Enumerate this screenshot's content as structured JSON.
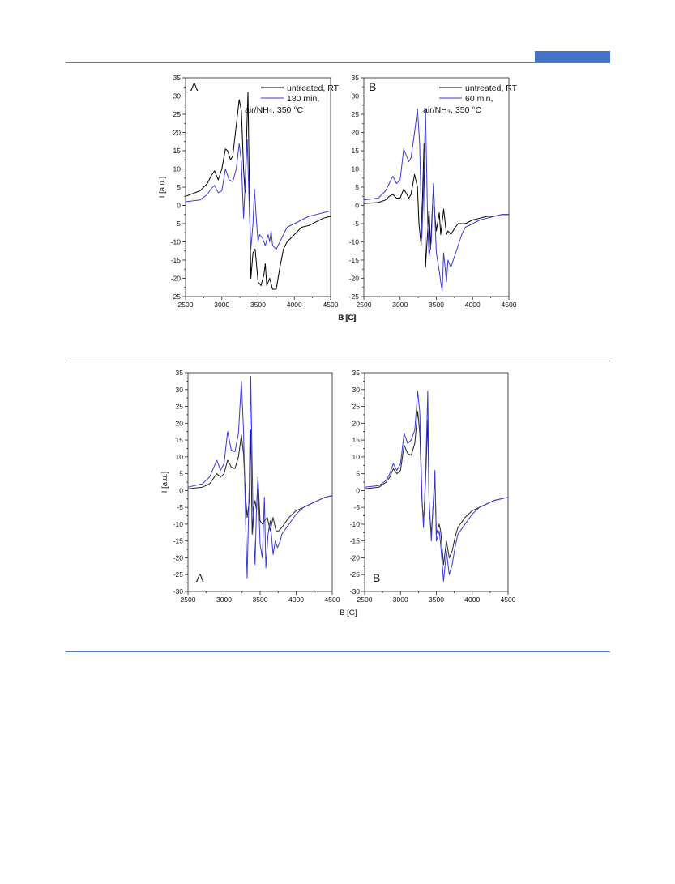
{
  "page": {
    "accent_color": "#4f81bd",
    "tab_color": "#4472c4"
  },
  "chart_data": [
    {
      "type": "line",
      "panel_label": "A",
      "xlabel": "B [G]",
      "ylabel": "I [a.u.]",
      "xlim": [
        2500,
        4500
      ],
      "ylim": [
        -25,
        35
      ],
      "xticks": [
        2500,
        3000,
        3500,
        4000,
        4500
      ],
      "yticks": [
        -25,
        -20,
        -15,
        -10,
        -5,
        0,
        5,
        10,
        15,
        20,
        25,
        30,
        35
      ],
      "legend_position": "top-right",
      "series": [
        {
          "name": "untreated, RT",
          "color": "#000000",
          "x": [
            2500,
            2700,
            2800,
            2850,
            2900,
            2950,
            3000,
            3050,
            3080,
            3120,
            3150,
            3200,
            3240,
            3270,
            3300,
            3320,
            3340,
            3360,
            3380,
            3400,
            3430,
            3460,
            3500,
            3540,
            3580,
            3600,
            3620,
            3660,
            3700,
            3750,
            3800,
            3850,
            3900,
            4000,
            4100,
            4200,
            4300,
            4400,
            4500
          ],
          "y": [
            2.5,
            4,
            6,
            8,
            9.5,
            7,
            10,
            15.5,
            15,
            12.5,
            13.5,
            22,
            29,
            26,
            10,
            3.5,
            18,
            31,
            5,
            -20,
            -13,
            -12,
            -21,
            -22,
            -19,
            -16,
            -22,
            -20,
            -23,
            -23,
            -17,
            -12,
            -10,
            -8,
            -6,
            -5.5,
            -4.5,
            -3.5,
            -3
          ]
        },
        {
          "name": "180 min, air/NH₃, 350 °C",
          "color": "#3a3ad8",
          "x": [
            2500,
            2700,
            2800,
            2850,
            2900,
            2950,
            3000,
            3050,
            3100,
            3150,
            3200,
            3240,
            3270,
            3300,
            3320,
            3350,
            3380,
            3400,
            3430,
            3450,
            3480,
            3500,
            3520,
            3560,
            3580,
            3600,
            3640,
            3660,
            3680,
            3700,
            3750,
            3800,
            3850,
            3900,
            4000,
            4100,
            4200,
            4300,
            4400,
            4500
          ],
          "y": [
            1,
            1.5,
            3,
            4.5,
            5.5,
            3.5,
            4,
            10,
            7,
            6.5,
            10,
            17,
            12,
            -3.5,
            5,
            18,
            -2,
            -12,
            -5,
            4.5,
            -5,
            -10,
            -8,
            -9,
            -10,
            -11,
            -8,
            -10,
            -7,
            -11,
            -12,
            -10,
            -8,
            -6,
            -5,
            -4,
            -3,
            -2.5,
            -2,
            -1.5
          ]
        }
      ]
    },
    {
      "type": "line",
      "panel_label": "B",
      "xlabel": "B [G]",
      "ylabel": "",
      "xlim": [
        2500,
        4500
      ],
      "ylim": [
        -25,
        35
      ],
      "xticks": [
        2500,
        3000,
        3500,
        4000,
        4500
      ],
      "yticks": [
        -25,
        -20,
        -15,
        -10,
        -5,
        0,
        5,
        10,
        15,
        20,
        25,
        30,
        35
      ],
      "legend_position": "top-right",
      "series": [
        {
          "name": "untreated, RT",
          "color": "#000000",
          "x": [
            2500,
            2700,
            2800,
            2850,
            2900,
            2950,
            3000,
            3050,
            3080,
            3120,
            3150,
            3200,
            3240,
            3260,
            3290,
            3310,
            3330,
            3350,
            3380,
            3400,
            3420,
            3440,
            3460,
            3480,
            3500,
            3540,
            3560,
            3600,
            3640,
            3660,
            3700,
            3760,
            3800,
            3900,
            4000,
            4100,
            4200,
            4300,
            4400,
            4500
          ],
          "y": [
            0.5,
            0.8,
            1.5,
            2.5,
            3,
            2,
            2,
            4.5,
            3.5,
            2,
            3,
            8.5,
            5,
            -5,
            -11,
            3,
            17,
            -17,
            -7,
            -1,
            -12,
            -3,
            5,
            -3,
            -7,
            -2,
            -8,
            -1,
            -8,
            -7,
            -8,
            -6,
            -5,
            -5,
            -4,
            -3.5,
            -3,
            -3,
            -2.5,
            -2.5
          ]
        },
        {
          "name": "60 min, air/NH₃, 350 °C",
          "color": "#3a3ad8",
          "x": [
            2500,
            2700,
            2800,
            2850,
            2900,
            2950,
            3000,
            3050,
            3080,
            3120,
            3150,
            3200,
            3240,
            3270,
            3300,
            3320,
            3350,
            3380,
            3400,
            3430,
            3460,
            3500,
            3540,
            3560,
            3580,
            3600,
            3640,
            3660,
            3700,
            3750,
            3800,
            3850,
            3900,
            4000,
            4100,
            4200,
            4300,
            4400,
            4500
          ],
          "y": [
            1.5,
            2,
            4,
            6,
            8,
            6,
            7,
            15.5,
            14,
            12,
            13,
            20,
            26.5,
            17,
            -9,
            2,
            26.5,
            -5,
            -14,
            -10,
            6,
            -13,
            -18,
            -21,
            -23.5,
            -13,
            -21,
            -15,
            -17,
            -14,
            -11,
            -8,
            -6,
            -5,
            -4,
            -3.5,
            -3,
            -2.5,
            -2.5
          ]
        }
      ]
    },
    {
      "type": "line",
      "panel_label": "A",
      "xlabel": "B [G]",
      "ylabel": "I [a.u.]",
      "xlim": [
        2500,
        4500
      ],
      "ylim": [
        -30,
        35
      ],
      "xticks": [
        2500,
        3000,
        3500,
        4000,
        4500
      ],
      "yticks": [
        -30,
        -25,
        -20,
        -15,
        -10,
        -5,
        0,
        5,
        10,
        15,
        20,
        25,
        30,
        35
      ],
      "series": [
        {
          "name": "",
          "color": "#222222",
          "x": [
            2500,
            2700,
            2800,
            2850,
            2900,
            2950,
            3000,
            3050,
            3100,
            3150,
            3200,
            3240,
            3270,
            3300,
            3320,
            3350,
            3370,
            3390,
            3410,
            3430,
            3450,
            3470,
            3500,
            3530,
            3560,
            3600,
            3640,
            3680,
            3720,
            3760,
            3800,
            3900,
            4000,
            4100,
            4200,
            4300,
            4400,
            4500
          ],
          "y": [
            0.5,
            1,
            2,
            3.5,
            5,
            4,
            5,
            9,
            7,
            6.5,
            10,
            16.5,
            11,
            -2,
            -8,
            -3,
            18,
            -13,
            -5,
            -3,
            -6,
            4,
            -9,
            -10,
            -9,
            -8,
            -12,
            -8,
            -12,
            -12,
            -11,
            -8,
            -6,
            -5,
            -4,
            -3,
            -2,
            -1.5
          ]
        },
        {
          "name": "",
          "color": "#3a3ad8",
          "x": [
            2500,
            2700,
            2800,
            2850,
            2900,
            2950,
            3000,
            3050,
            3100,
            3150,
            3200,
            3240,
            3270,
            3300,
            3320,
            3350,
            3370,
            3400,
            3430,
            3450,
            3470,
            3500,
            3530,
            3560,
            3580,
            3610,
            3640,
            3680,
            3710,
            3740,
            3780,
            3800,
            3900,
            4000,
            4100,
            4200,
            4300,
            4400,
            4500
          ],
          "y": [
            1,
            2,
            4,
            6.5,
            9,
            6,
            8,
            17.5,
            12,
            11.5,
            17,
            32.5,
            18,
            -10,
            -26,
            2,
            34,
            -5,
            -22,
            -5,
            3,
            -16,
            -20,
            -2,
            -23,
            -13,
            -9,
            -19,
            -15,
            -17,
            -15,
            -13,
            -10,
            -7,
            -5,
            -4,
            -3,
            -2,
            -1.5
          ]
        }
      ]
    },
    {
      "type": "line",
      "panel_label": "B",
      "xlabel": "",
      "ylabel": "",
      "xlim": [
        2500,
        4500
      ],
      "ylim": [
        -30,
        35
      ],
      "xticks": [
        2500,
        3000,
        3500,
        4000,
        4500
      ],
      "yticks": [
        -30,
        -25,
        -20,
        -15,
        -10,
        -5,
        0,
        5,
        10,
        15,
        20,
        25,
        30,
        35
      ],
      "series": [
        {
          "name": "",
          "color": "#222222",
          "x": [
            2500,
            2700,
            2800,
            2850,
            2900,
            2950,
            3000,
            3050,
            3100,
            3150,
            3200,
            3240,
            3270,
            3300,
            3320,
            3350,
            3380,
            3400,
            3430,
            3450,
            3480,
            3500,
            3540,
            3560,
            3600,
            3640,
            3680,
            3720,
            3760,
            3800,
            3900,
            4000,
            4100,
            4200,
            4300,
            4400,
            4500
          ],
          "y": [
            0.5,
            1,
            2.5,
            4,
            6.5,
            5,
            6,
            13.5,
            11,
            10.5,
            14,
            23.5,
            17,
            -3,
            -10,
            3,
            21,
            -5,
            -13,
            -6,
            4,
            -13,
            -10,
            -12,
            -22,
            -15,
            -20,
            -18,
            -14,
            -11,
            -8,
            -6,
            -5,
            -4,
            -3,
            -2.5,
            -2
          ]
        },
        {
          "name": "",
          "color": "#3a3ad8",
          "x": [
            2500,
            2700,
            2800,
            2850,
            2900,
            2950,
            3000,
            3050,
            3100,
            3150,
            3200,
            3240,
            3270,
            3300,
            3320,
            3350,
            3380,
            3400,
            3430,
            3450,
            3480,
            3500,
            3540,
            3560,
            3600,
            3640,
            3680,
            3720,
            3760,
            3800,
            3900,
            4000,
            4100,
            4200,
            4300,
            4400,
            4500
          ],
          "y": [
            1,
            1.5,
            3,
            5,
            8,
            6,
            8,
            17,
            14,
            15,
            18,
            29.5,
            23,
            -2,
            -11,
            5,
            29.5,
            -3,
            -15,
            -6,
            6,
            -15,
            -12,
            -16,
            -27,
            -18,
            -25,
            -22,
            -17,
            -13,
            -10,
            -7,
            -5,
            -4,
            -3,
            -2.5,
            -2
          ]
        }
      ]
    }
  ]
}
